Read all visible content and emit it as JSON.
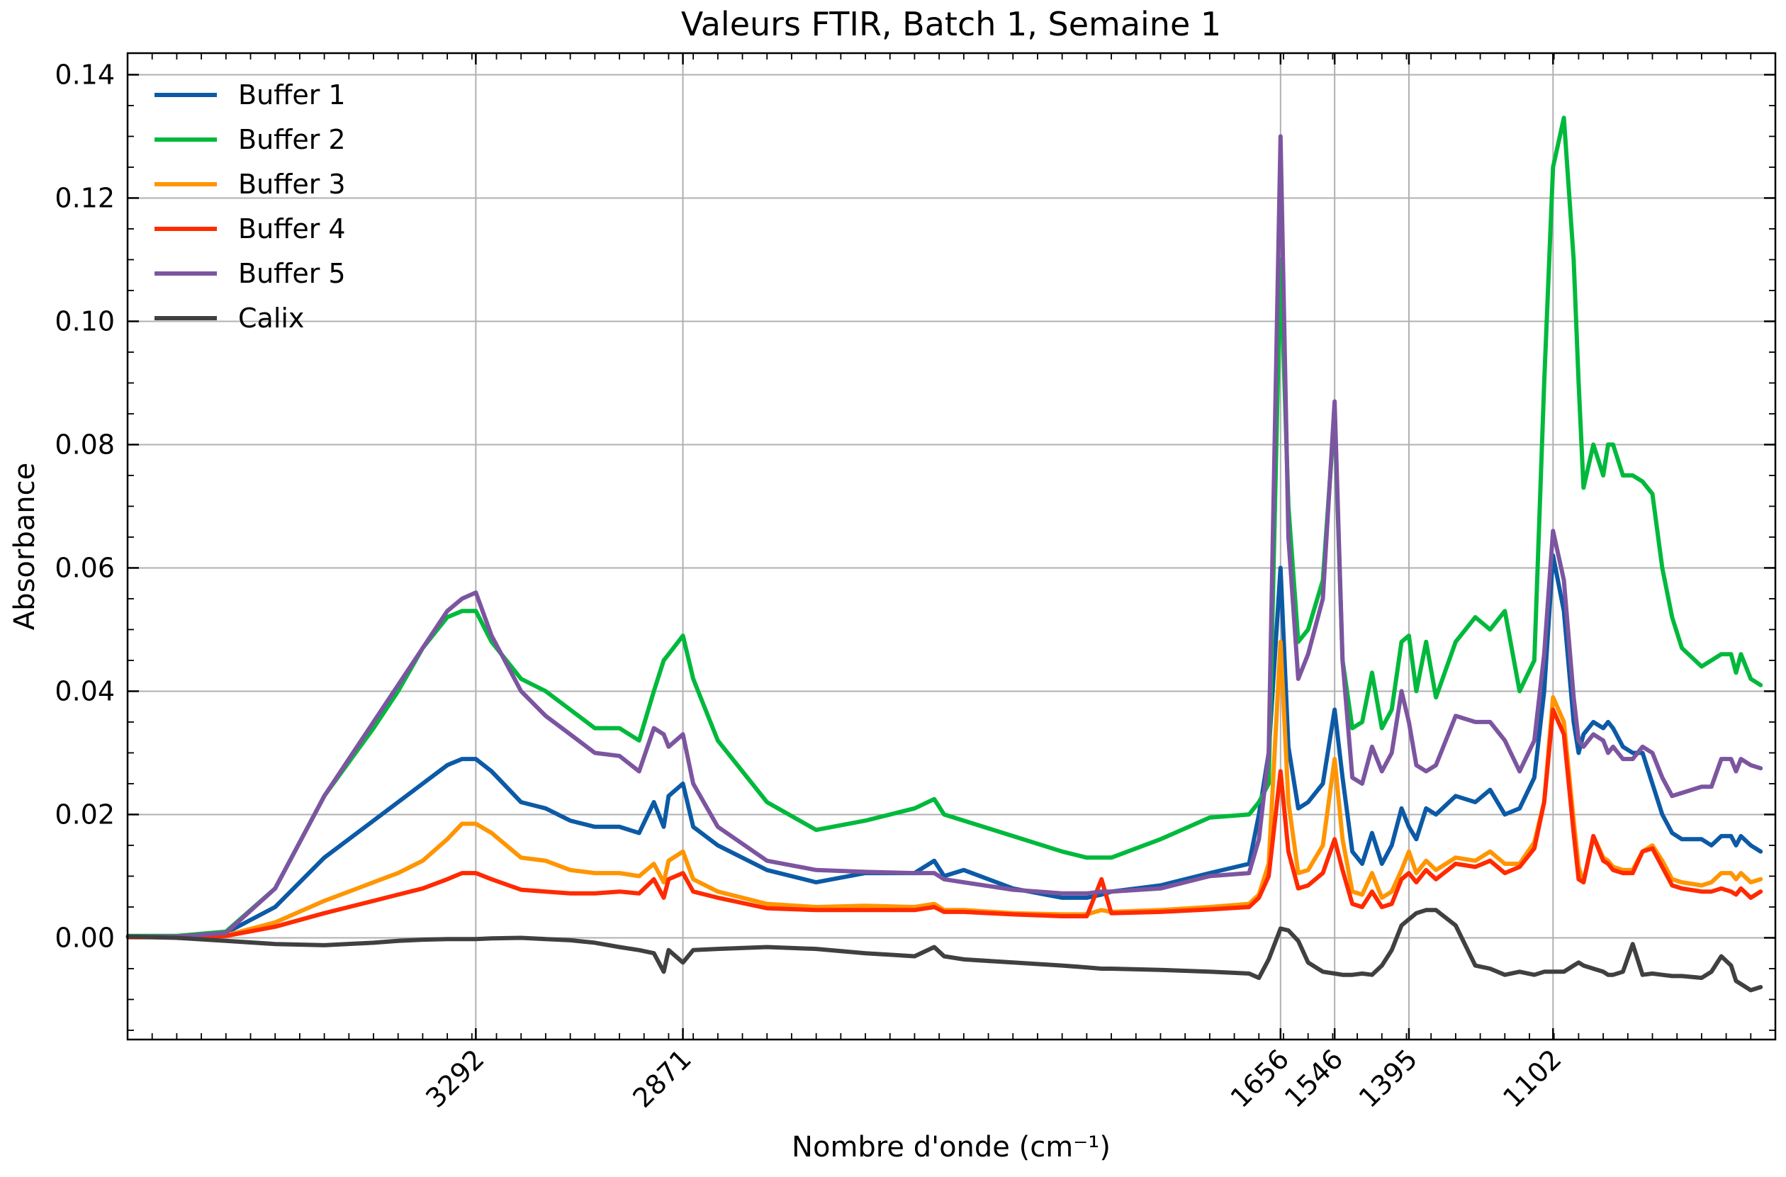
{
  "chart_data": {
    "type": "line",
    "title": "Valeurs FTIR, Batch 1, Semaine 1",
    "xlabel": "Nombre d'onde (cm⁻¹)",
    "ylabel": "Absorbance",
    "xlim": [
      4000,
      650
    ],
    "ylim": [
      -0.0165,
      0.1435
    ],
    "x_reversed": true,
    "grid": true,
    "legend_position": "top-left",
    "yticks": [
      0.0,
      0.02,
      0.04,
      0.06,
      0.08,
      0.1,
      0.12,
      0.14
    ],
    "ytick_labels": [
      "0.00",
      "0.02",
      "0.04",
      "0.06",
      "0.08",
      "0.10",
      "0.12",
      "0.14"
    ],
    "xticks": [
      3292,
      2871,
      1656,
      1546,
      1395,
      1102
    ],
    "xtick_labels": [
      "3292",
      "2871",
      "1656",
      "1546",
      "1395",
      "1102"
    ],
    "x": [
      3999,
      3900,
      3800,
      3700,
      3600,
      3500,
      3450,
      3400,
      3350,
      3320,
      3292,
      3260,
      3200,
      3150,
      3100,
      3050,
      3000,
      2960,
      2930,
      2910,
      2900,
      2871,
      2850,
      2800,
      2700,
      2600,
      2500,
      2400,
      2360,
      2340,
      2300,
      2200,
      2100,
      2050,
      2020,
      2000,
      1900,
      1800,
      1720,
      1700,
      1680,
      1656,
      1640,
      1620,
      1600,
      1570,
      1546,
      1530,
      1510,
      1490,
      1470,
      1450,
      1430,
      1410,
      1395,
      1380,
      1360,
      1340,
      1300,
      1260,
      1230,
      1200,
      1170,
      1140,
      1120,
      1102,
      1080,
      1060,
      1050,
      1040,
      1020,
      1000,
      990,
      980,
      960,
      940,
      920,
      900,
      880,
      860,
      840,
      800,
      780,
      760,
      740,
      730,
      720,
      700,
      680
    ],
    "series": [
      {
        "name": "Buffer 1",
        "color": "#0c5aa6",
        "values": [
          0.0002,
          0.0002,
          0.0008,
          0.005,
          0.013,
          0.019,
          0.022,
          0.025,
          0.028,
          0.029,
          0.029,
          0.027,
          0.022,
          0.021,
          0.019,
          0.018,
          0.018,
          0.017,
          0.022,
          0.018,
          0.023,
          0.025,
          0.018,
          0.015,
          0.011,
          0.009,
          0.0105,
          0.0105,
          0.0125,
          0.01,
          0.011,
          0.008,
          0.0065,
          0.0065,
          0.007,
          0.0075,
          0.0085,
          0.0105,
          0.012,
          0.02,
          0.03,
          0.06,
          0.031,
          0.021,
          0.022,
          0.025,
          0.037,
          0.026,
          0.014,
          0.012,
          0.017,
          0.012,
          0.015,
          0.021,
          0.018,
          0.016,
          0.021,
          0.02,
          0.023,
          0.022,
          0.024,
          0.02,
          0.021,
          0.026,
          0.04,
          0.062,
          0.053,
          0.035,
          0.03,
          0.033,
          0.035,
          0.034,
          0.035,
          0.034,
          0.031,
          0.03,
          0.03,
          0.025,
          0.02,
          0.017,
          0.016,
          0.016,
          0.015,
          0.0165,
          0.0165,
          0.015,
          0.0165,
          0.015,
          0.014
        ]
      },
      {
        "name": "Buffer 2",
        "color": "#00b93c",
        "values": [
          0.0003,
          0.0003,
          0.001,
          0.008,
          0.023,
          0.034,
          0.04,
          0.047,
          0.052,
          0.053,
          0.053,
          0.048,
          0.042,
          0.04,
          0.037,
          0.034,
          0.034,
          0.032,
          0.04,
          0.045,
          0.046,
          0.049,
          0.042,
          0.032,
          0.022,
          0.0175,
          0.019,
          0.021,
          0.0225,
          0.02,
          0.019,
          0.0165,
          0.014,
          0.013,
          0.013,
          0.013,
          0.016,
          0.0195,
          0.02,
          0.022,
          0.025,
          0.11,
          0.07,
          0.048,
          0.05,
          0.058,
          0.085,
          0.045,
          0.034,
          0.035,
          0.043,
          0.034,
          0.037,
          0.048,
          0.049,
          0.04,
          0.048,
          0.039,
          0.048,
          0.052,
          0.05,
          0.053,
          0.04,
          0.045,
          0.09,
          0.125,
          0.133,
          0.11,
          0.09,
          0.073,
          0.08,
          0.075,
          0.08,
          0.08,
          0.075,
          0.075,
          0.074,
          0.072,
          0.06,
          0.052,
          0.047,
          0.044,
          0.045,
          0.046,
          0.046,
          0.043,
          0.046,
          0.042,
          0.041
        ]
      },
      {
        "name": "Buffer 3",
        "color": "#ff9500",
        "values": [
          0.0001,
          0.0001,
          0.0004,
          0.0025,
          0.006,
          0.009,
          0.0105,
          0.0125,
          0.016,
          0.0185,
          0.0185,
          0.017,
          0.013,
          0.0125,
          0.011,
          0.0105,
          0.0105,
          0.01,
          0.012,
          0.009,
          0.0125,
          0.014,
          0.0095,
          0.0075,
          0.0055,
          0.005,
          0.0052,
          0.005,
          0.0055,
          0.0045,
          0.0045,
          0.004,
          0.0038,
          0.0038,
          0.0045,
          0.0042,
          0.0045,
          0.005,
          0.0055,
          0.007,
          0.012,
          0.048,
          0.022,
          0.0105,
          0.011,
          0.015,
          0.029,
          0.016,
          0.0075,
          0.007,
          0.0105,
          0.0065,
          0.0075,
          0.011,
          0.014,
          0.0105,
          0.0125,
          0.011,
          0.013,
          0.0125,
          0.014,
          0.012,
          0.012,
          0.0155,
          0.022,
          0.039,
          0.035,
          0.019,
          0.0115,
          0.009,
          0.0165,
          0.013,
          0.0125,
          0.0115,
          0.011,
          0.011,
          0.014,
          0.015,
          0.0125,
          0.0095,
          0.009,
          0.0085,
          0.009,
          0.0105,
          0.0105,
          0.0095,
          0.0105,
          0.009,
          0.0095
        ]
      },
      {
        "name": "Buffer 4",
        "color": "#ff2a00",
        "values": [
          0.0001,
          0.0001,
          0.0003,
          0.0018,
          0.004,
          0.006,
          0.007,
          0.008,
          0.0095,
          0.0105,
          0.0105,
          0.0095,
          0.0078,
          0.0075,
          0.0072,
          0.0072,
          0.0075,
          0.0072,
          0.0095,
          0.0065,
          0.0095,
          0.0105,
          0.0075,
          0.0065,
          0.0048,
          0.0045,
          0.0045,
          0.0045,
          0.005,
          0.0042,
          0.0042,
          0.0038,
          0.0035,
          0.0035,
          0.0095,
          0.004,
          0.0042,
          0.0046,
          0.005,
          0.0065,
          0.01,
          0.027,
          0.014,
          0.008,
          0.0085,
          0.0105,
          0.016,
          0.011,
          0.0055,
          0.005,
          0.0075,
          0.005,
          0.0055,
          0.0095,
          0.0105,
          0.009,
          0.011,
          0.0095,
          0.012,
          0.0115,
          0.0125,
          0.0105,
          0.0115,
          0.0145,
          0.022,
          0.037,
          0.033,
          0.017,
          0.0095,
          0.009,
          0.0165,
          0.0125,
          0.012,
          0.011,
          0.0105,
          0.0105,
          0.014,
          0.0145,
          0.0115,
          0.0085,
          0.008,
          0.0075,
          0.0075,
          0.008,
          0.0075,
          0.007,
          0.008,
          0.0065,
          0.0075
        ]
      },
      {
        "name": "Buffer 5",
        "color": "#7c55a0",
        "values": [
          0.0002,
          0.0002,
          0.0008,
          0.008,
          0.023,
          0.035,
          0.041,
          0.047,
          0.053,
          0.055,
          0.056,
          0.049,
          0.04,
          0.036,
          0.033,
          0.03,
          0.0295,
          0.027,
          0.034,
          0.033,
          0.031,
          0.033,
          0.025,
          0.018,
          0.0125,
          0.011,
          0.0107,
          0.0105,
          0.0105,
          0.0095,
          0.009,
          0.0078,
          0.0072,
          0.0072,
          0.0075,
          0.0075,
          0.008,
          0.01,
          0.0105,
          0.016,
          0.03,
          0.13,
          0.065,
          0.042,
          0.046,
          0.055,
          0.087,
          0.045,
          0.026,
          0.025,
          0.031,
          0.027,
          0.03,
          0.04,
          0.035,
          0.028,
          0.027,
          0.028,
          0.036,
          0.035,
          0.035,
          0.032,
          0.027,
          0.032,
          0.046,
          0.066,
          0.058,
          0.039,
          0.032,
          0.031,
          0.033,
          0.032,
          0.03,
          0.031,
          0.029,
          0.029,
          0.031,
          0.03,
          0.026,
          0.023,
          0.0235,
          0.0245,
          0.0245,
          0.029,
          0.029,
          0.027,
          0.029,
          0.028,
          0.0275
        ]
      },
      {
        "name": "Calix",
        "color": "#404040",
        "values": [
          0.0002,
          0.0,
          -0.0005,
          -0.001,
          -0.0012,
          -0.0008,
          -0.0005,
          -0.0003,
          -0.0002,
          -0.0002,
          -0.0002,
          -0.0001,
          0.0,
          -0.0002,
          -0.0004,
          -0.0008,
          -0.0015,
          -0.002,
          -0.0025,
          -0.0055,
          -0.002,
          -0.004,
          -0.002,
          -0.0018,
          -0.0015,
          -0.0018,
          -0.0025,
          -0.003,
          -0.0015,
          -0.003,
          -0.0035,
          -0.004,
          -0.0045,
          -0.0048,
          -0.005,
          -0.005,
          -0.0052,
          -0.0055,
          -0.0058,
          -0.0065,
          -0.0035,
          0.0015,
          0.0012,
          -0.0005,
          -0.004,
          -0.0055,
          -0.0058,
          -0.006,
          -0.006,
          -0.0058,
          -0.006,
          -0.0045,
          -0.002,
          0.002,
          0.003,
          0.004,
          0.0045,
          0.0045,
          0.002,
          -0.0045,
          -0.005,
          -0.006,
          -0.0055,
          -0.006,
          -0.0055,
          -0.0055,
          -0.0055,
          -0.0045,
          -0.004,
          -0.0045,
          -0.005,
          -0.0055,
          -0.006,
          -0.006,
          -0.0055,
          -0.001,
          -0.006,
          -0.0058,
          -0.006,
          -0.0062,
          -0.0062,
          -0.0065,
          -0.0055,
          -0.003,
          -0.0045,
          -0.007,
          -0.0075,
          -0.0085,
          -0.008
        ]
      }
    ]
  }
}
